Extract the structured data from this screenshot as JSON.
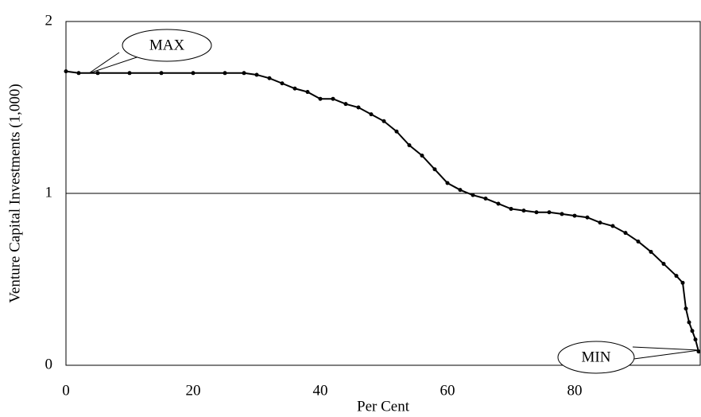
{
  "chart_data": {
    "type": "line",
    "x_label": "Per Cent",
    "y_label": "Venture Capital Investments (1,000)",
    "annotations": [
      "MAX",
      "MIN"
    ],
    "xlim": [
      0,
      100
    ],
    "xticks": [
      0,
      20,
      40,
      60,
      80
    ],
    "ylim": [
      0,
      2
    ],
    "yticks": [
      0,
      1,
      2
    ],
    "grid": true,
    "series": [
      {
        "color": "#000000",
        "x": [
          0,
          2,
          5,
          10,
          15,
          20,
          25,
          28,
          30,
          32,
          34,
          36,
          38,
          40,
          42,
          44,
          46,
          48,
          50,
          52,
          54,
          56,
          58,
          60,
          62,
          64,
          66,
          68,
          70,
          72,
          74,
          76,
          78,
          80,
          82,
          84,
          86,
          88,
          90,
          92,
          94,
          96,
          97,
          97.5,
          98,
          98.5,
          99,
          99.5
        ],
        "values": [
          1.71,
          1.7,
          1.7,
          1.7,
          1.7,
          1.7,
          1.7,
          1.7,
          1.69,
          1.67,
          1.64,
          1.61,
          1.59,
          1.55,
          1.55,
          1.52,
          1.5,
          1.46,
          1.42,
          1.36,
          1.28,
          1.22,
          1.14,
          1.06,
          1.02,
          0.99,
          0.97,
          0.94,
          0.91,
          0.9,
          0.89,
          0.89,
          0.88,
          0.87,
          0.86,
          0.83,
          0.81,
          0.77,
          0.72,
          0.66,
          0.59,
          0.52,
          0.48,
          0.33,
          0.25,
          0.2,
          0.15,
          0.08
        ]
      }
    ]
  }
}
